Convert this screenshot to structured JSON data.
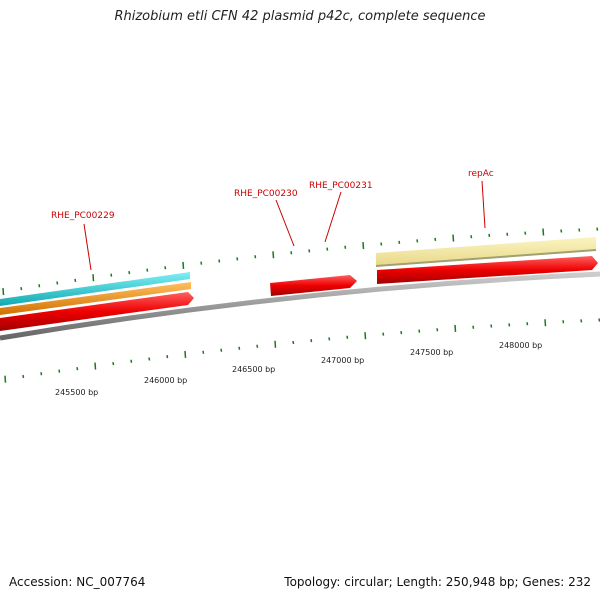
{
  "title": "Rhizobium etli CFN 42 plasmid p42c, complete sequence",
  "footer": {
    "accession": "Accession: NC_007764",
    "summary": "Topology: circular; Length: 250,948 bp; Genes: 232"
  },
  "colors": {
    "cds": "#ee0000",
    "gene_outline": "#f0e6a0",
    "cyan_feature": "#22c8d0",
    "orange_feature": "#f08c00",
    "backbone": "#888888",
    "tick": "#1a7a1a",
    "label": "#cc0000"
  },
  "gene_labels": [
    {
      "name": "RHE_PC00229"
    },
    {
      "name": "RHE_PC00230"
    },
    {
      "name": "RHE_PC00231"
    },
    {
      "name": "repAc"
    }
  ],
  "scale_labels": [
    "245500 bp",
    "246000 bp",
    "246500 bp",
    "247000 bp",
    "247500 bp",
    "248000 bp"
  ]
}
